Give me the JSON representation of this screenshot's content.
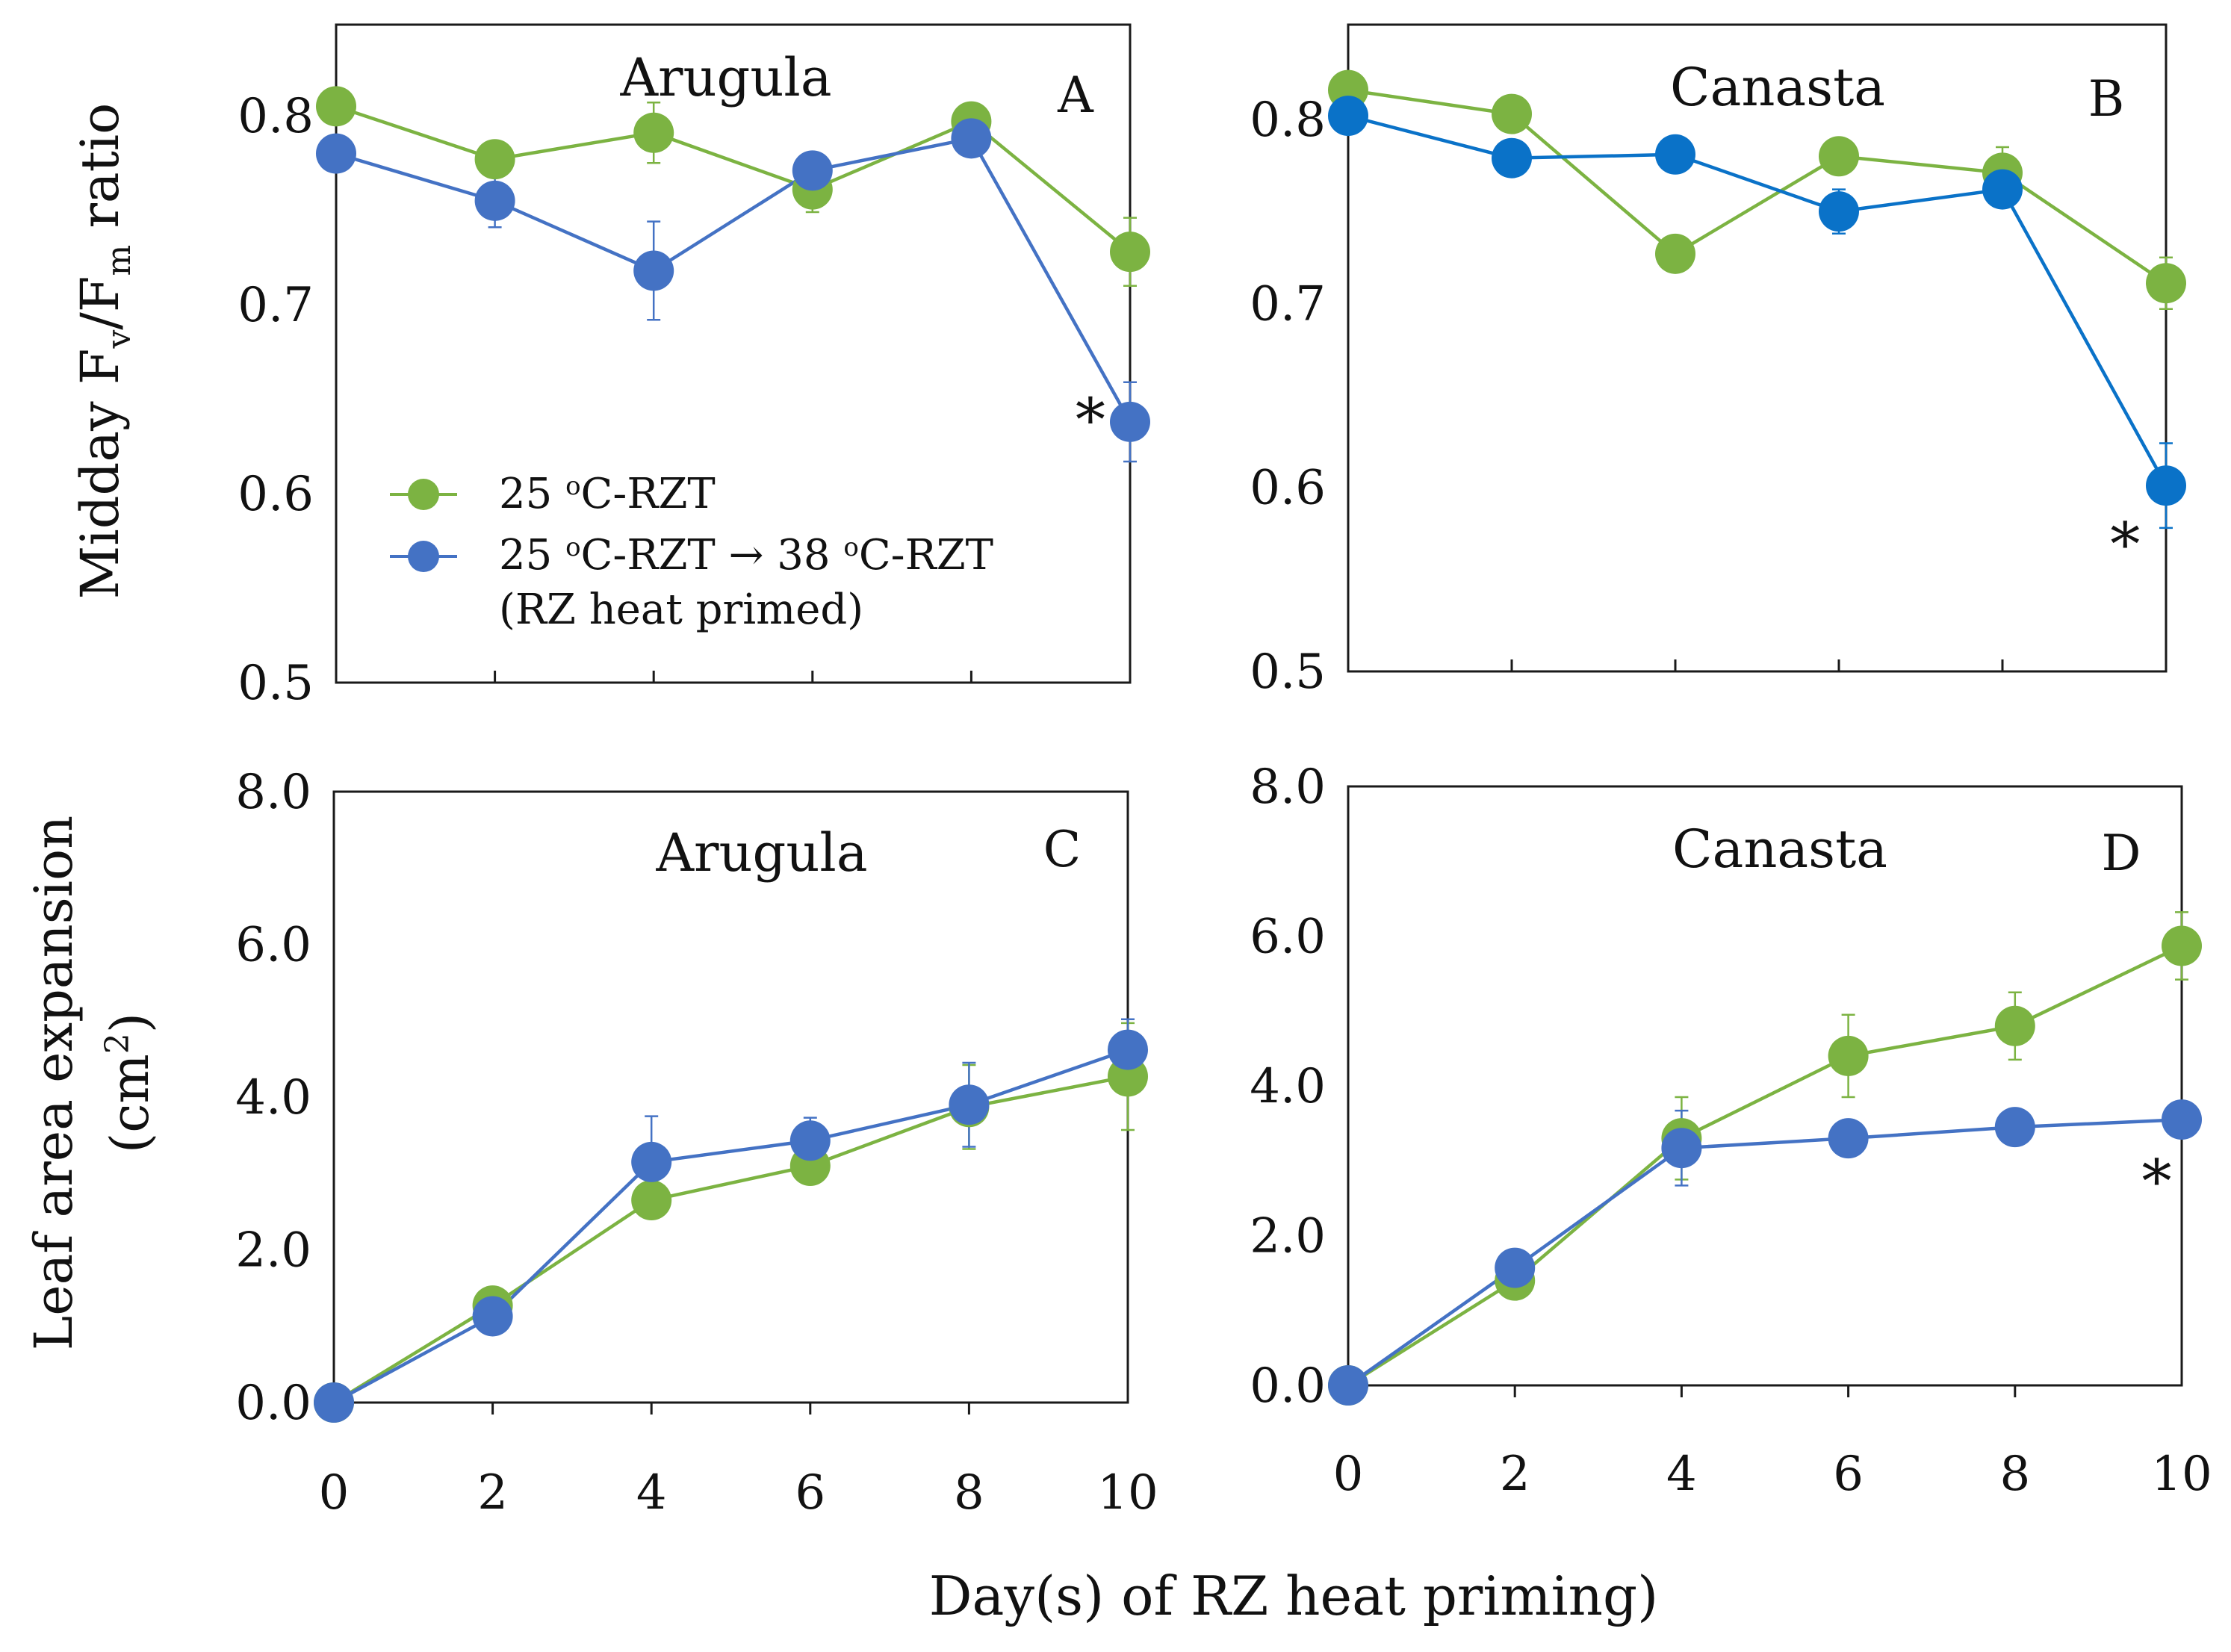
{
  "colors": {
    "green": "#7cb342",
    "blue": "#4472c4",
    "blue_b": "#0a72c8",
    "axis": "#1a1a1a"
  },
  "figure": {
    "xlabel": "Day(s) of RZ heat priming)",
    "ylabel_top_prefix": "Midday F",
    "ylabel_top_v": "v",
    "ylabel_top_slash": "/F",
    "ylabel_top_m": "m",
    "ylabel_top_suffix": " ratio",
    "ylabel_bottom_line1": "Leaf area expansion",
    "ylabel_bottom_line2_prefix": "(cm",
    "ylabel_bottom_line2_sup": "2",
    "ylabel_bottom_line2_suffix": ")"
  },
  "legend": {
    "series1_prefix": "25 ",
    "series1_o": "o",
    "series1_suffix": "C-RZT",
    "series2_prefix": "25 ",
    "series2_o1": "o",
    "series2_mid": "C-RZT → 38 ",
    "series2_o2": "o",
    "series2_suffix": "C-RZT",
    "series2_line2": "(RZ heat primed)"
  },
  "chart_data": [
    {
      "panel": "A",
      "type": "line",
      "title": "Arugula",
      "letter": "A",
      "x": [
        0,
        2,
        4,
        6,
        8,
        10
      ],
      "xlim": [
        0,
        10
      ],
      "ylim": [
        0.5,
        0.85
      ],
      "yticks": [
        "0.5",
        "0.6",
        "0.7",
        "0.8"
      ],
      "xticks": [],
      "series": [
        {
          "name": "25 oC-RZT",
          "color": "green",
          "values": [
            0.805,
            0.777,
            0.791,
            0.761,
            0.797,
            0.728
          ],
          "errors": [
            0.0,
            0.008,
            0.016,
            0.012,
            0.008,
            0.018
          ]
        },
        {
          "name": "25 oC-RZT → 38 oC-RZT (RZ heat primed)",
          "color": "blue",
          "values": [
            0.78,
            0.755,
            0.718,
            0.771,
            0.788,
            0.638
          ],
          "errors": [
            0.0,
            0.014,
            0.026,
            0.008,
            0.005,
            0.021
          ]
        }
      ],
      "annotations": [
        {
          "text": "*",
          "x": 9.5,
          "y": 0.64
        }
      ]
    },
    {
      "panel": "B",
      "type": "line",
      "title": "Canasta",
      "letter": "B",
      "x": [
        0,
        2,
        4,
        6,
        8,
        10
      ],
      "xlim": [
        0,
        10
      ],
      "ylim": [
        0.5,
        0.85
      ],
      "yticks": [
        "0.5",
        "0.6",
        "0.7",
        "0.8"
      ],
      "xticks": [],
      "series": [
        {
          "name": "25 oC-RZT",
          "color": "green",
          "values": [
            0.816,
            0.803,
            0.727,
            0.78,
            0.771,
            0.711
          ],
          "errors": [
            0.0,
            0.0,
            0.0,
            0.0,
            0.014,
            0.014
          ]
        },
        {
          "name": "25 oC-RZT → 38 oC-RZT (RZ heat primed)",
          "color": "blue_b",
          "values": [
            0.802,
            0.779,
            0.781,
            0.75,
            0.762,
            0.601
          ],
          "errors": [
            0.0,
            0.0,
            0.0,
            0.012,
            0.0,
            0.023
          ]
        }
      ],
      "annotations": [
        {
          "text": "*",
          "x": 9.5,
          "y": 0.57
        }
      ]
    },
    {
      "panel": "C",
      "type": "line",
      "title": "Arugula",
      "letter": "C",
      "x": [
        0,
        2,
        4,
        6,
        8,
        10
      ],
      "xlim": [
        0,
        10
      ],
      "ylim": [
        0.0,
        8.0
      ],
      "yticks": [
        "0.0",
        "2.0",
        "4.0",
        "6.0",
        "8.0"
      ],
      "xticks": [
        "0",
        "2",
        "4",
        "6",
        "8",
        "10"
      ],
      "series": [
        {
          "name": "25 oC-RZT",
          "color": "green",
          "values": [
            0.0,
            1.27,
            2.65,
            3.1,
            3.87,
            4.27
          ],
          "errors": [
            0.0,
            0.0,
            0.0,
            0.0,
            0.55,
            0.7
          ]
        },
        {
          "name": "25 oC-RZT → 38 oC-RZT (RZ heat primed)",
          "color": "blue",
          "values": [
            0.0,
            1.13,
            3.15,
            3.43,
            3.9,
            4.62
          ],
          "errors": [
            0.0,
            0.0,
            0.6,
            0.3,
            0.55,
            0.4
          ]
        }
      ],
      "annotations": []
    },
    {
      "panel": "D",
      "type": "line",
      "title": "Canasta",
      "letter": "D",
      "x": [
        0,
        2,
        4,
        6,
        8,
        10
      ],
      "xlim": [
        0,
        10
      ],
      "ylim": [
        0.0,
        8.0
      ],
      "yticks": [
        "0.0",
        "2.0",
        "4.0",
        "6.0",
        "8.0"
      ],
      "xticks": [
        "0",
        "2",
        "4",
        "6",
        "8",
        "10"
      ],
      "series": [
        {
          "name": "25 oC-RZT",
          "color": "green",
          "values": [
            0.0,
            1.4,
            3.3,
            4.4,
            4.8,
            5.87
          ],
          "errors": [
            0.0,
            0.0,
            0.55,
            0.55,
            0.45,
            0.45
          ]
        },
        {
          "name": "25 oC-RZT → 38 oC-RZT (RZ heat primed)",
          "color": "blue",
          "values": [
            0.0,
            1.57,
            3.17,
            3.3,
            3.45,
            3.55
          ],
          "errors": [
            0.0,
            0.0,
            0.5,
            0.0,
            0.0,
            0.0
          ]
        }
      ],
      "annotations": [
        {
          "text": "*",
          "x": 9.7,
          "y": 2.75
        }
      ]
    }
  ]
}
